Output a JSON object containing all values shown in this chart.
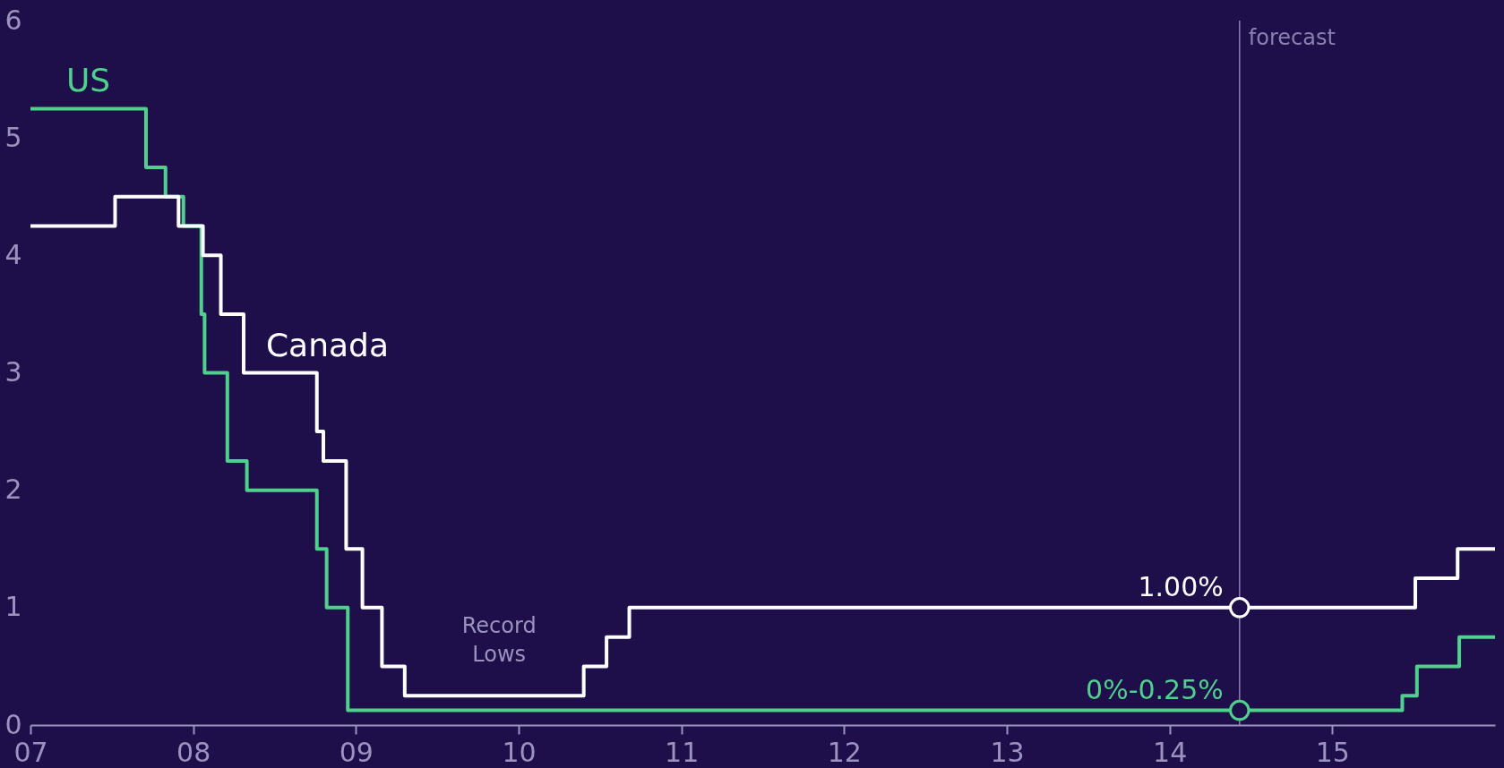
{
  "chart_data": {
    "type": "step",
    "series": [
      {
        "name": "US",
        "color": "#4fd08c",
        "x": [
          7,
          7.71,
          7.83,
          7.94,
          8.05,
          8.07,
          8.21,
          8.33,
          8.76,
          8.82,
          8.95,
          15.43,
          15.52,
          15.78,
          16
        ],
        "values": [
          5.25,
          4.75,
          4.5,
          4.25,
          3.5,
          3.0,
          2.25,
          2.0,
          1.5,
          1.0,
          0.125,
          0.25,
          0.5,
          0.75,
          0.75
        ]
      },
      {
        "name": "Canada",
        "color": "#ffffff",
        "x": [
          7,
          7.52,
          7.91,
          8.06,
          8.17,
          8.31,
          8.76,
          8.8,
          8.94,
          9.04,
          9.16,
          9.3,
          10.4,
          10.54,
          10.68,
          15.51,
          15.77,
          16
        ],
        "values": [
          4.25,
          4.5,
          4.25,
          4.0,
          3.5,
          3.0,
          2.5,
          2.25,
          1.5,
          1.0,
          0.5,
          0.25,
          0.5,
          0.75,
          1.0,
          1.25,
          1.5,
          1.5
        ]
      }
    ],
    "xlim": [
      7,
      16
    ],
    "xticks": [
      {
        "value": 7,
        "label": "07"
      },
      {
        "value": 8,
        "label": "08"
      },
      {
        "value": 9,
        "label": "09"
      },
      10,
      11,
      12,
      13,
      14,
      15
    ],
    "ylim": [
      0,
      6
    ],
    "yticks": [
      0,
      1,
      2,
      3,
      4,
      5,
      6
    ],
    "grid": false,
    "legend": false,
    "ref_lines": [
      {
        "axis": "x",
        "value": 14.43,
        "label": "forecast",
        "color": "#8a80b0"
      }
    ],
    "annotations": [
      "Record Lows",
      {
        "text": "1.00%",
        "x": 14.43,
        "y": 1.0
      },
      {
        "text": "0%-0.25%",
        "x": 14.43,
        "y": 0.125
      }
    ]
  }
}
